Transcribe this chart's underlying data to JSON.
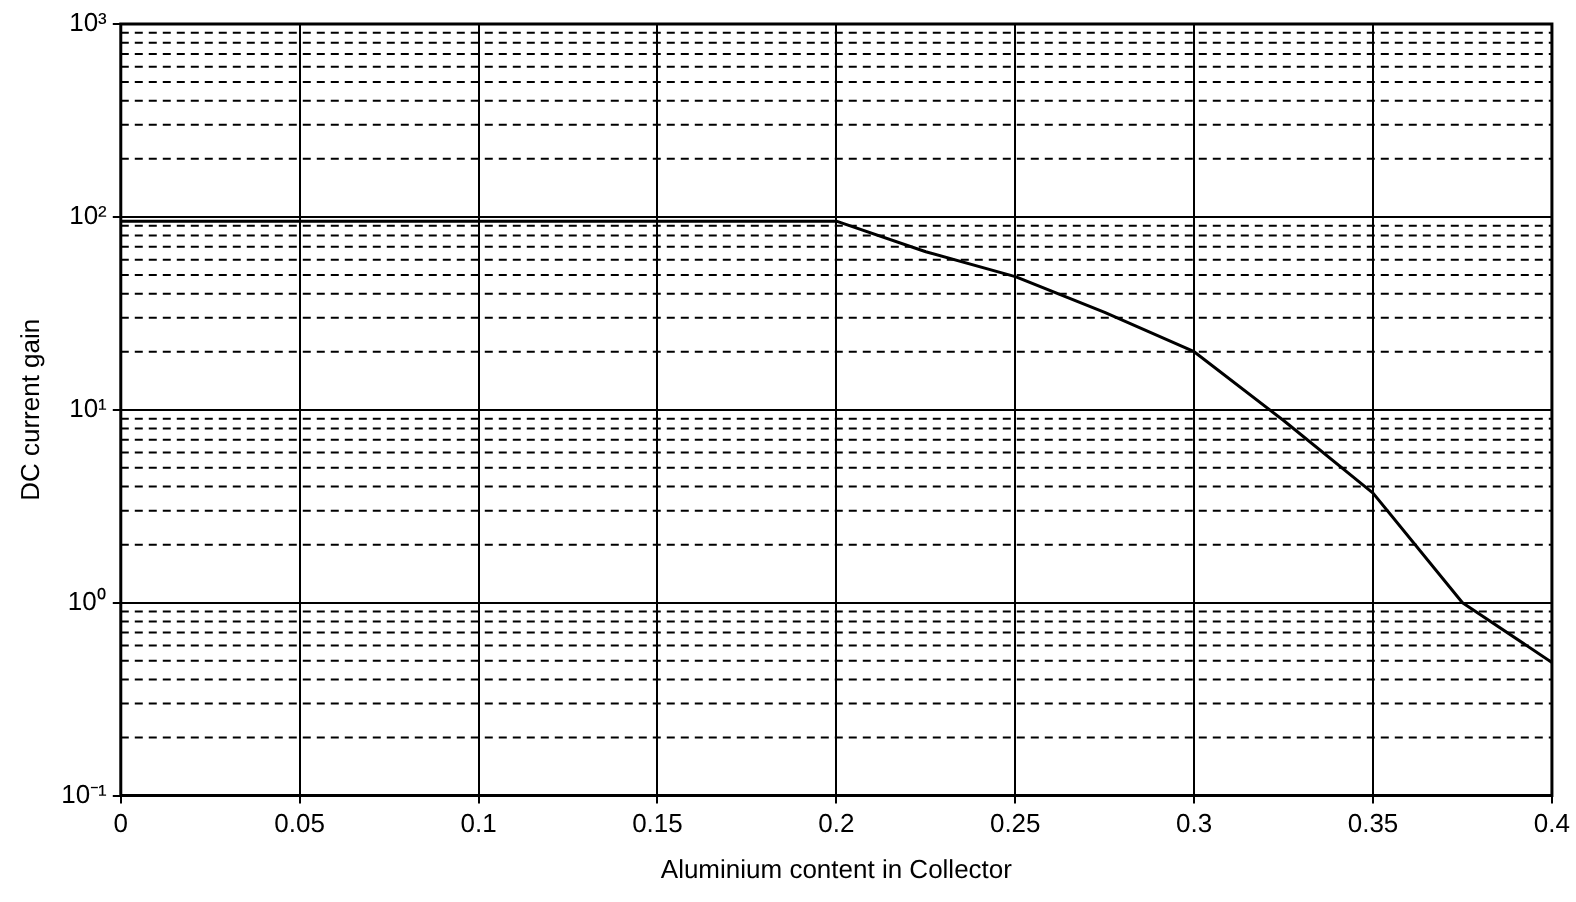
{
  "chart_data": {
    "type": "line",
    "xlabel": "Aluminium content in Collector",
    "ylabel": "DC current gain",
    "x": [
      0,
      0.05,
      0.1,
      0.15,
      0.2,
      0.225,
      0.25,
      0.275,
      0.3,
      0.325,
      0.35,
      0.375,
      0.4
    ],
    "values": [
      95,
      95,
      95,
      95,
      95,
      66,
      49,
      32,
      20,
      8.8,
      3.7,
      1.0,
      0.49
    ],
    "color": "#000000",
    "marker": "none",
    "line_style": "solid",
    "log": "y",
    "grid": true,
    "legend": false,
    "xlim": [
      0,
      0.4
    ],
    "xticks": [
      0,
      0.05,
      0.1,
      0.15,
      0.2,
      0.25,
      0.3,
      0.35,
      0.4
    ],
    "ylim": [
      0.1,
      1000
    ],
    "yticks": [
      {
        "value": 0.1,
        "label": "10⁻¹"
      },
      {
        "value": 1,
        "label": "10⁰"
      },
      {
        "value": 10,
        "label": "10¹"
      },
      {
        "value": 100,
        "label": "10²"
      },
      {
        "value": 1000,
        "label": "10³"
      }
    ]
  }
}
